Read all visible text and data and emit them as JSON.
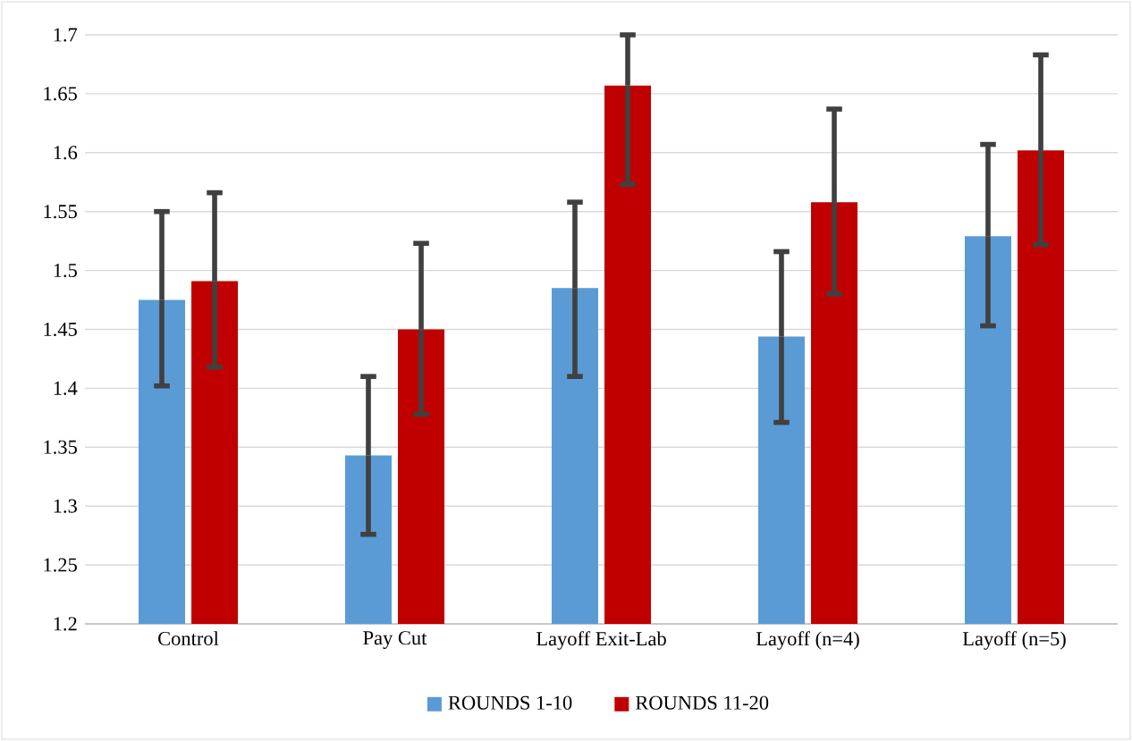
{
  "chart_data": {
    "type": "bar",
    "categories": [
      "Control",
      "Pay Cut",
      "Layoff Exit-Lab",
      "Layoff (n=4)",
      "Layoff (n=5)"
    ],
    "series": [
      {
        "name": "ROUNDS 1-10",
        "color": "#5b9bd5",
        "values": [
          1.475,
          1.343,
          1.485,
          1.444,
          1.529
        ],
        "errors": [
          [
            1.402,
            1.55
          ],
          [
            1.276,
            1.41
          ],
          [
            1.41,
            1.558
          ],
          [
            1.371,
            1.516
          ],
          [
            1.453,
            1.607
          ]
        ]
      },
      {
        "name": "ROUNDS 11-20",
        "color": "#c00000",
        "values": [
          1.491,
          1.45,
          1.657,
          1.558,
          1.602
        ],
        "errors": [
          [
            1.418,
            1.566
          ],
          [
            1.378,
            1.523
          ],
          [
            1.573,
            1.7
          ],
          [
            1.48,
            1.637
          ],
          [
            1.522,
            1.683
          ]
        ]
      }
    ],
    "ylim": [
      1.2,
      1.7
    ],
    "yticks": [
      1.2,
      1.25,
      1.3,
      1.35,
      1.4,
      1.45,
      1.5,
      1.55,
      1.6,
      1.65,
      1.7
    ],
    "grid": "y",
    "legend": "bottom"
  }
}
